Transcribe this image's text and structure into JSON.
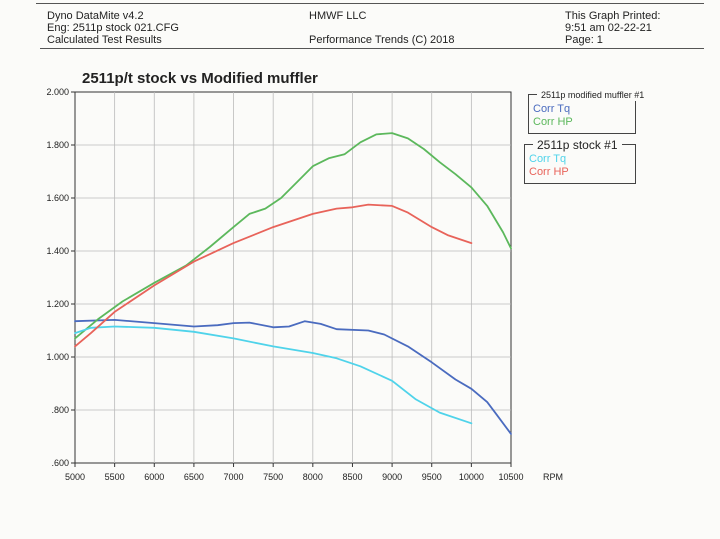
{
  "header": {
    "left": [
      "Dyno DataMite v4.2",
      "Eng: 2511p stock 021.CFG",
      "Calculated Test Results"
    ],
    "middle": [
      "HMWF LLC",
      "Performance Trends (C) 2018"
    ],
    "right": [
      "This Graph Printed:",
      "9:51 am 02-22-21",
      "Page: 1"
    ]
  },
  "chart_data": {
    "type": "line",
    "title": "2511p/t stock vs Modified muffler",
    "xlabel": "RPM",
    "ylabel": "",
    "xlim": [
      5000,
      10500
    ],
    "ylim": [
      0.6,
      2.0
    ],
    "xticks": [
      "5000",
      "5500",
      "6000",
      "6500",
      "7000",
      "7500",
      "8000",
      "8500",
      "9000",
      "9500",
      "10000",
      "10500"
    ],
    "yticks": [
      ".600",
      ".800",
      "1.000",
      "1.200",
      "1.400",
      "1.600",
      "1.800",
      "2.000"
    ],
    "grid": true,
    "legend": [
      {
        "title": "2511p modified muffler  #1",
        "entries": [
          {
            "label": "Corr Tq",
            "color": "#4a6bbf"
          },
          {
            "label": "Corr HP",
            "color": "#5cb85c"
          }
        ]
      },
      {
        "title": "2511p stock  #1",
        "entries": [
          {
            "label": "Corr Tq",
            "color": "#4fd3ea"
          },
          {
            "label": "Corr HP",
            "color": "#e8635a"
          }
        ]
      }
    ],
    "series": [
      {
        "name": "2511p modified muffler Corr Tq",
        "color": "#4a6bbf",
        "x": [
          5000,
          5500,
          6000,
          6500,
          6800,
          7000,
          7200,
          7500,
          7700,
          7900,
          8100,
          8300,
          8700,
          8900,
          9200,
          9500,
          9800,
          10000,
          10200,
          10300,
          10500
        ],
        "y": [
          1.135,
          1.14,
          1.128,
          1.115,
          1.12,
          1.128,
          1.13,
          1.112,
          1.115,
          1.135,
          1.125,
          1.105,
          1.1,
          1.085,
          1.04,
          0.98,
          0.915,
          0.88,
          0.83,
          0.79,
          0.71
        ]
      },
      {
        "name": "2511p modified muffler Corr HP",
        "color": "#5cb85c",
        "x": [
          5000,
          5300,
          5600,
          6000,
          6400,
          6700,
          7000,
          7200,
          7400,
          7600,
          7800,
          8000,
          8200,
          8400,
          8600,
          8800,
          9000,
          9200,
          9400,
          9600,
          9800,
          10000,
          10200,
          10400,
          10500
        ],
        "y": [
          1.07,
          1.145,
          1.21,
          1.28,
          1.345,
          1.415,
          1.49,
          1.54,
          1.56,
          1.6,
          1.66,
          1.72,
          1.75,
          1.765,
          1.81,
          1.84,
          1.845,
          1.825,
          1.785,
          1.735,
          1.69,
          1.64,
          1.57,
          1.47,
          1.41
        ]
      },
      {
        "name": "2511p stock Corr Tq",
        "color": "#4fd3ea",
        "x": [
          5000,
          5200,
          5500,
          6000,
          6500,
          7000,
          7500,
          8000,
          8300,
          8600,
          9000,
          9300,
          9600,
          10000
        ],
        "y": [
          1.09,
          1.11,
          1.115,
          1.11,
          1.095,
          1.07,
          1.04,
          1.015,
          0.995,
          0.965,
          0.91,
          0.84,
          0.79,
          0.75
        ]
      },
      {
        "name": "2511p stock Corr HP",
        "color": "#e8635a",
        "x": [
          5000,
          5200,
          5500,
          6000,
          6500,
          7000,
          7500,
          8000,
          8300,
          8500,
          8700,
          9000,
          9200,
          9500,
          9700,
          10000
        ],
        "y": [
          1.04,
          1.09,
          1.17,
          1.27,
          1.36,
          1.43,
          1.49,
          1.54,
          1.56,
          1.565,
          1.575,
          1.57,
          1.545,
          1.49,
          1.46,
          1.43
        ]
      }
    ]
  }
}
